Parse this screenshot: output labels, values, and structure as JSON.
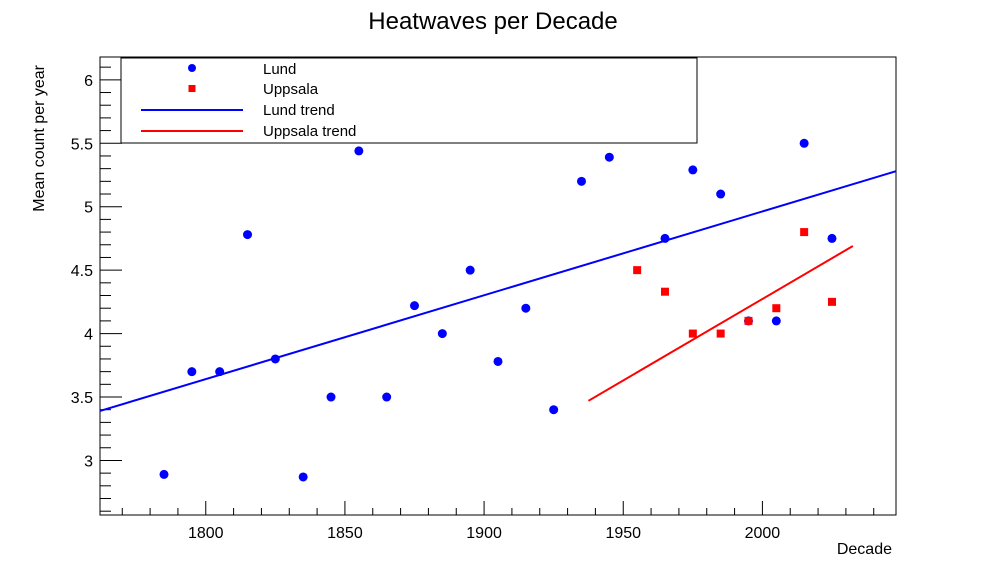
{
  "chart_data": {
    "type": "scatter",
    "title": "Heatwaves per Decade",
    "xlabel": "Decade",
    "ylabel": "Mean count per year",
    "xlim": [
      1762,
      2048
    ],
    "ylim": [
      2.57,
      6.18
    ],
    "x_ticks": [
      1800,
      1850,
      1900,
      1950,
      2000
    ],
    "x_tick_labels": [
      "1800",
      "1850",
      "1900",
      "1950",
      "2000"
    ],
    "y_ticks": [
      3,
      3.5,
      4,
      4.5,
      5,
      5.5,
      6
    ],
    "y_tick_labels": [
      "3",
      "3.5",
      "4",
      "4.5",
      "5",
      "5.5",
      "6"
    ],
    "grid": false,
    "legend_position": "top-left",
    "series": [
      {
        "name": "Lund",
        "kind": "points",
        "marker": "circle",
        "color": "#0000ff",
        "points": [
          [
            1785,
            2.89
          ],
          [
            1795,
            3.7
          ],
          [
            1805,
            3.7
          ],
          [
            1815,
            4.78
          ],
          [
            1825,
            3.8
          ],
          [
            1835,
            2.87
          ],
          [
            1845,
            3.5
          ],
          [
            1855,
            5.44
          ],
          [
            1865,
            3.5
          ],
          [
            1875,
            4.22
          ],
          [
            1885,
            4.0
          ],
          [
            1895,
            4.5
          ],
          [
            1905,
            3.78
          ],
          [
            1915,
            4.2
          ],
          [
            1925,
            3.4
          ],
          [
            1935,
            5.2
          ],
          [
            1945,
            5.39
          ],
          [
            1965,
            4.75
          ],
          [
            1975,
            5.29
          ],
          [
            1985,
            5.1
          ],
          [
            1995,
            4.1
          ],
          [
            2005,
            4.1
          ],
          [
            2015,
            5.5
          ],
          [
            2025,
            4.75
          ]
        ]
      },
      {
        "name": "Uppsala",
        "kind": "points",
        "marker": "square",
        "color": "#ff0000",
        "points": [
          [
            1955,
            4.5
          ],
          [
            1965,
            4.33
          ],
          [
            1975,
            4.0
          ],
          [
            1985,
            4.0
          ],
          [
            1995,
            4.1
          ],
          [
            2005,
            4.2
          ],
          [
            2015,
            4.8
          ],
          [
            2025,
            4.25
          ]
        ]
      },
      {
        "name": "Lund trend",
        "kind": "line",
        "color": "#0000ff",
        "points": [
          [
            1762,
            3.39
          ],
          [
            2048,
            5.28
          ]
        ]
      },
      {
        "name": "Uppsala trend",
        "kind": "line",
        "color": "#ff0000",
        "points": [
          [
            1937.5,
            3.47
          ],
          [
            2032.5,
            4.69
          ]
        ]
      }
    ]
  }
}
